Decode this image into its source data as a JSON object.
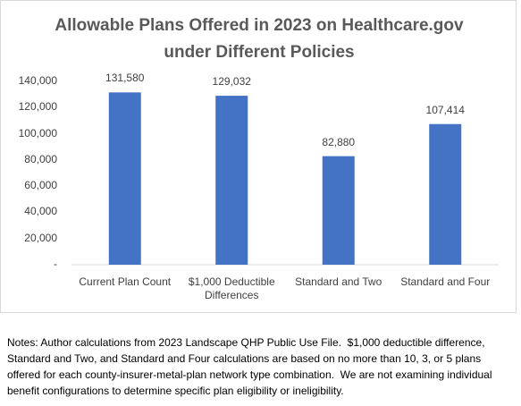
{
  "chart_data": {
    "type": "bar",
    "title": "Allowable Plans Offered in 2023 on Healthcare.gov under Different Policies",
    "categories": [
      "Current Plan Count",
      "$1,000 Deductible Differences",
      "Standard and Two",
      "Standard and Four"
    ],
    "values": [
      131580,
      129032,
      82880,
      107414
    ],
    "value_labels": [
      "131,580",
      "129,032",
      "82,880",
      "107,414"
    ],
    "color": "#4472c4",
    "ylim": [
      0,
      140000
    ],
    "yticks": [
      {
        "value": 0,
        "label": "-"
      },
      {
        "value": 20000,
        "label": "20,000"
      },
      {
        "value": 40000,
        "label": "40,000"
      },
      {
        "value": 60000,
        "label": "60,000"
      },
      {
        "value": 80000,
        "label": "80,000"
      },
      {
        "value": 100000,
        "label": "100,000"
      },
      {
        "value": 120000,
        "label": "120,000"
      },
      {
        "value": 140000,
        "label": "140,000"
      }
    ],
    "grid": false
  },
  "notes": "Notes: Author calculations from 2023 Landscape QHP Public Use File.  $1,000 deductible difference, Standard and Two, and Standard and Four calculations are based on no more than 10, 3, or 5 plans offered for each county-insurer-metal-plan network type combination.  We are not examining individual benefit configurations to determine specific plan eligibility or ineligibility."
}
